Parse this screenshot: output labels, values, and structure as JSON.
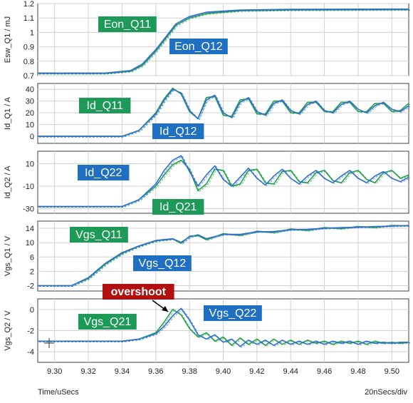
{
  "colors": {
    "green": "#22a04b",
    "blue": "#2f6fd0",
    "green_label": "#1e9a58",
    "blue_label": "#1f6fc2",
    "red_label": "#b01010",
    "grid": "#d0d0d0",
    "frame": "#404040"
  },
  "footer": {
    "time_label": "Time/uSecs",
    "scale_label": "20nSecs/div"
  },
  "chart_data": [
    {
      "type": "line",
      "ylabel": "Esw_Q1 / mJ",
      "ylim": [
        0.7,
        1.2
      ],
      "yticks": [
        "0.7",
        "0.8",
        "0.9",
        "1",
        "1.1",
        "1.2"
      ],
      "xlim": [
        9.29,
        9.51
      ],
      "grid": true,
      "annotations": [
        {
          "text": "Eon_Q11",
          "color": "green"
        },
        {
          "text": "Eon_Q12",
          "color": "blue"
        }
      ],
      "series": [
        {
          "color": "green",
          "x": [
            9.29,
            9.33,
            9.345,
            9.352,
            9.36,
            9.366,
            9.372,
            9.38,
            9.39,
            9.41,
            9.44,
            9.51
          ],
          "y": [
            0.715,
            0.715,
            0.73,
            0.77,
            0.87,
            0.96,
            1.05,
            1.1,
            1.13,
            1.15,
            1.155,
            1.158
          ]
        },
        {
          "color": "blue",
          "x": [
            9.29,
            9.33,
            9.345,
            9.352,
            9.36,
            9.366,
            9.372,
            9.38,
            9.39,
            9.41,
            9.44,
            9.51
          ],
          "y": [
            0.718,
            0.718,
            0.735,
            0.78,
            0.88,
            0.97,
            1.06,
            1.11,
            1.14,
            1.155,
            1.16,
            1.162
          ]
        }
      ]
    },
    {
      "type": "line",
      "ylabel": "Id_Q1 / A",
      "ylim": [
        -6,
        45
      ],
      "yticks": [
        "0",
        "10",
        "20",
        "30",
        "40"
      ],
      "xlim": [
        9.29,
        9.51
      ],
      "grid": true,
      "annotations": [
        {
          "text": "Id_Q11",
          "color": "green"
        },
        {
          "text": "Id_Q12",
          "color": "blue"
        }
      ],
      "series": [
        {
          "color": "green",
          "x": [
            9.29,
            9.34,
            9.35,
            9.36,
            9.365,
            9.37,
            9.375,
            9.38,
            9.385,
            9.39,
            9.395,
            9.4,
            9.405,
            9.41,
            9.415,
            9.42,
            9.425,
            9.43,
            9.435,
            9.44,
            9.445,
            9.45,
            9.455,
            9.46,
            9.465,
            9.47,
            9.475,
            9.48,
            9.485,
            9.49,
            9.495,
            9.5,
            9.505,
            9.51
          ],
          "y": [
            0,
            0,
            5,
            20,
            32,
            41,
            36,
            21,
            15,
            33,
            34,
            18,
            17,
            31,
            32,
            19,
            19,
            30,
            30,
            20,
            20,
            29,
            29,
            21,
            21,
            29,
            29,
            21,
            21,
            28,
            28,
            21,
            22,
            28
          ]
        },
        {
          "color": "blue",
          "x": [
            9.29,
            9.34,
            9.35,
            9.36,
            9.365,
            9.37,
            9.375,
            9.38,
            9.385,
            9.39,
            9.395,
            9.4,
            9.405,
            9.41,
            9.415,
            9.42,
            9.425,
            9.43,
            9.435,
            9.44,
            9.445,
            9.45,
            9.455,
            9.46,
            9.465,
            9.47,
            9.475,
            9.48,
            9.485,
            9.49,
            9.495,
            9.5,
            9.505,
            9.51
          ],
          "y": [
            0,
            0,
            5,
            19,
            31,
            40,
            37,
            22,
            15,
            31,
            35,
            20,
            16,
            29,
            33,
            21,
            18,
            28,
            31,
            22,
            19,
            27,
            30,
            22,
            20,
            27,
            30,
            23,
            20,
            26,
            29,
            23,
            21,
            26
          ]
        }
      ]
    },
    {
      "type": "line",
      "ylabel": "Id_Q2 / A",
      "ylim": [
        -34,
        21
      ],
      "yticks": [
        "-30",
        "-10",
        "10"
      ],
      "xlim": [
        9.29,
        9.51
      ],
      "grid": true,
      "annotations": [
        {
          "text": "Id_Q22",
          "color": "blue"
        },
        {
          "text": "Id_Q21",
          "color": "green"
        }
      ],
      "series": [
        {
          "color": "green",
          "x": [
            9.29,
            9.34,
            9.35,
            9.36,
            9.365,
            9.37,
            9.375,
            9.38,
            9.385,
            9.39,
            9.395,
            9.4,
            9.405,
            9.41,
            9.415,
            9.42,
            9.425,
            9.43,
            9.435,
            9.44,
            9.445,
            9.45,
            9.455,
            9.46,
            9.465,
            9.47,
            9.475,
            9.48,
            9.485,
            9.49,
            9.495,
            9.5,
            9.505,
            9.51
          ],
          "y": [
            -28,
            -28,
            -22,
            -10,
            0,
            9,
            13,
            5,
            -14,
            -8,
            5,
            4,
            -10,
            -8,
            4,
            5,
            -7,
            -8,
            3,
            4,
            -6,
            -7,
            2,
            4,
            -5,
            -7,
            2,
            4,
            -4,
            -7,
            2,
            4,
            -3,
            0
          ]
        },
        {
          "color": "blue",
          "x": [
            9.29,
            9.34,
            9.35,
            9.36,
            9.365,
            9.37,
            9.375,
            9.38,
            9.385,
            9.39,
            9.395,
            9.4,
            9.405,
            9.41,
            9.415,
            9.42,
            9.425,
            9.43,
            9.435,
            9.44,
            9.445,
            9.45,
            9.455,
            9.46,
            9.465,
            9.47,
            9.475,
            9.48,
            9.485,
            9.49,
            9.495,
            9.5,
            9.505,
            9.51
          ],
          "y": [
            -28,
            -28,
            -22,
            -8,
            4,
            13,
            17,
            3,
            -10,
            0,
            8,
            -4,
            -10,
            -2,
            6,
            -3,
            -9,
            -1,
            5,
            -3,
            -8,
            -1,
            4,
            -3,
            -7,
            -1,
            4,
            -3,
            -7,
            -1,
            3,
            -3,
            -6,
            -2
          ]
        }
      ]
    },
    {
      "type": "line",
      "ylabel": "Vgs_Q1 / V",
      "ylim": [
        -3.5,
        16
      ],
      "yticks": [
        "-2",
        "2",
        "6",
        "10",
        "14"
      ],
      "xlim": [
        9.29,
        9.51
      ],
      "grid": true,
      "annotations": [
        {
          "text": "Vgs_Q11",
          "color": "green"
        },
        {
          "text": "Vgs_Q12",
          "color": "blue"
        }
      ],
      "series": [
        {
          "color": "green",
          "x": [
            9.29,
            9.31,
            9.32,
            9.33,
            9.34,
            9.35,
            9.36,
            9.37,
            9.375,
            9.38,
            9.385,
            9.39,
            9.4,
            9.41,
            9.42,
            9.43,
            9.44,
            9.45,
            9.46,
            9.47,
            9.48,
            9.49,
            9.5,
            9.51
          ],
          "y": [
            -2,
            -2,
            0,
            4,
            7,
            9,
            10.5,
            11,
            9.8,
            11.8,
            12,
            10.8,
            12.5,
            12,
            13.2,
            12.8,
            13.8,
            13.4,
            14.2,
            13.9,
            14.5,
            14.2,
            14.8,
            14.7
          ]
        },
        {
          "color": "blue",
          "x": [
            9.29,
            9.31,
            9.32,
            9.33,
            9.34,
            9.35,
            9.36,
            9.37,
            9.375,
            9.38,
            9.385,
            9.39,
            9.4,
            9.41,
            9.42,
            9.43,
            9.44,
            9.45,
            9.46,
            9.47,
            9.48,
            9.49,
            9.5,
            9.51
          ],
          "y": [
            -2,
            -2,
            0.2,
            4.2,
            7.2,
            9.1,
            10.6,
            11.1,
            10.1,
            11.6,
            12.2,
            11.1,
            12.3,
            12.3,
            13,
            13.1,
            13.6,
            13.7,
            14,
            14.2,
            14.3,
            14.5,
            14.6,
            14.8
          ]
        }
      ]
    },
    {
      "type": "line",
      "ylabel": "Vgs_Q2 / V",
      "ylim": [
        -5,
        1
      ],
      "yticks": [
        "-4",
        "-2",
        "0"
      ],
      "xlim": [
        9.29,
        9.51
      ],
      "grid": true,
      "annotations": [
        {
          "text": "overshoot",
          "color": "red"
        },
        {
          "text": "Vgs_Q21",
          "color": "green"
        },
        {
          "text": "Vgs_Q22",
          "color": "blue"
        }
      ],
      "series": [
        {
          "color": "green",
          "x": [
            9.29,
            9.34,
            9.35,
            9.36,
            9.365,
            9.37,
            9.375,
            9.38,
            9.385,
            9.39,
            9.395,
            9.4,
            9.405,
            9.41,
            9.415,
            9.42,
            9.425,
            9.43,
            9.435,
            9.44,
            9.445,
            9.45,
            9.455,
            9.46,
            9.465,
            9.47,
            9.475,
            9.48,
            9.485,
            9.49,
            9.495,
            9.5,
            9.505,
            9.51
          ],
          "y": [
            -3,
            -3,
            -2.8,
            -2.2,
            -1.2,
            0,
            -0.5,
            -1.8,
            -2.6,
            -2.2,
            -3,
            -2.6,
            -3.4,
            -2.7,
            -3.3,
            -2.8,
            -3.4,
            -2.8,
            -3.3,
            -2.9,
            -3.3,
            -2.9,
            -3.2,
            -3,
            -3.3,
            -3,
            -3.2,
            -3,
            -3.3,
            -3,
            -3.2,
            -3.1,
            -3.2,
            -3.1
          ]
        },
        {
          "color": "blue",
          "x": [
            9.29,
            9.34,
            9.35,
            9.36,
            9.365,
            9.37,
            9.375,
            9.38,
            9.385,
            9.39,
            9.395,
            9.4,
            9.405,
            9.41,
            9.415,
            9.42,
            9.425,
            9.43,
            9.435,
            9.44,
            9.445,
            9.45,
            9.455,
            9.46,
            9.465,
            9.47,
            9.475,
            9.48,
            9.485,
            9.49,
            9.495,
            9.5,
            9.505,
            9.51
          ],
          "y": [
            -3,
            -3,
            -2.8,
            -2.3,
            -1.6,
            -0.6,
            0.1,
            -1,
            -2.4,
            -2.8,
            -2.4,
            -3.1,
            -2.8,
            -3.5,
            -2.9,
            -3.3,
            -2.9,
            -3.4,
            -2.9,
            -3.3,
            -3,
            -3.3,
            -3,
            -3.3,
            -3,
            -3.2,
            -3,
            -3.3,
            -3,
            -3.2,
            -3.1,
            -3.2,
            -3.1,
            -3.1
          ]
        }
      ]
    }
  ],
  "x_axis": {
    "ticks": [
      9.3,
      9.32,
      9.34,
      9.36,
      9.38,
      9.4,
      9.42,
      9.44,
      9.46,
      9.48,
      9.5
    ],
    "tick_labels": [
      "9.30",
      "9.32",
      "9.34",
      "9.36",
      "9.38",
      "9.40",
      "9.42",
      "9.44",
      "9.46",
      "9.48",
      "9.50"
    ]
  }
}
